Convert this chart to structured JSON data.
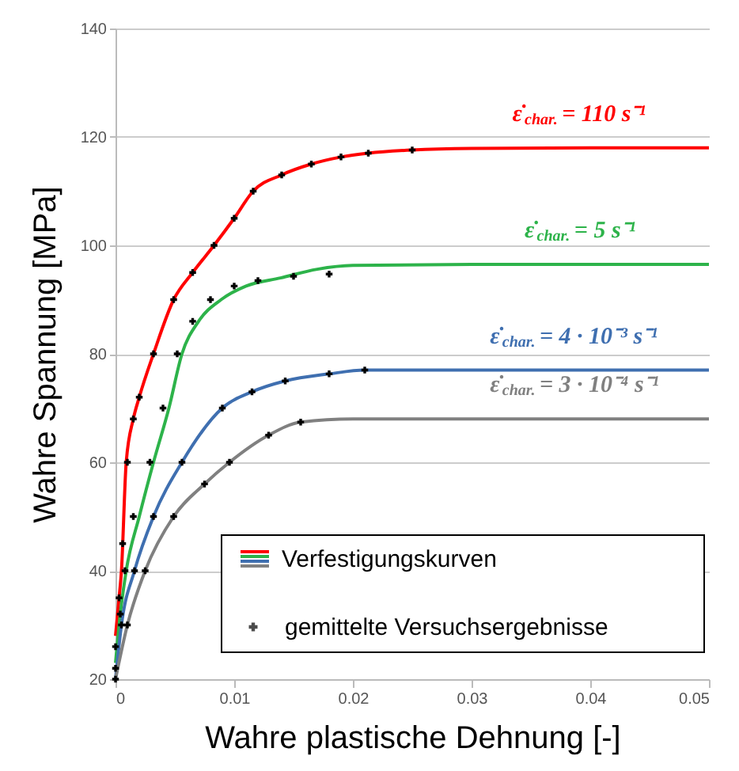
{
  "chart_data": {
    "type": "line",
    "xlabel": "Wahre plastische Dehnung [-]",
    "ylabel": "Wahre Spannung  [MPa]",
    "xlim": [
      0,
      0.05
    ],
    "xticks": [
      0,
      0.01,
      0.02,
      0.03,
      0.04,
      0.05
    ],
    "ylim": [
      20,
      140
    ],
    "yticks": [
      20,
      40,
      60,
      80,
      100,
      120,
      140
    ],
    "grid": "y",
    "legend": "bottom right",
    "annotations": [
      "ε̇$_{char.}$ = 110 s⁻¹",
      "ε̇$_{char.}$ = 5 s⁻¹",
      "ε̇$_{char.}$ = 4 · 10⁻³ s⁻¹",
      "ε̇$_{char.}$ = 3 · 10⁻⁴ s⁻¹"
    ],
    "series": [
      {
        "name": "Verfestigungskurven",
        "color": "#ff0000",
        "x": [
          0,
          0.0003,
          0.0005,
          0.0009,
          0.0015,
          0.002,
          0.0032,
          0.0049,
          0.0065,
          0.0083,
          0.01,
          0.0116,
          0.014,
          0.0165,
          0.019,
          0.0213,
          0.025,
          0.03,
          0.04,
          0.05
        ],
        "values": [
          28,
          35,
          40,
          60,
          68,
          72,
          80,
          90,
          95,
          100,
          105,
          110,
          113,
          115,
          116.3,
          117,
          117.6,
          117.9,
          118,
          118
        ]
      },
      {
        "color": "#2db34a",
        "x": [
          0,
          0.0004,
          0.0009,
          0.002,
          0.0032,
          0.0045,
          0.0056,
          0.007,
          0.0089,
          0.011,
          0.0139,
          0.017,
          0.02,
          0.03,
          0.05
        ],
        "values": [
          23,
          32,
          40,
          50,
          60,
          70,
          80,
          86,
          90,
          92.5,
          94,
          95.6,
          96.3,
          96.5,
          96.5
        ]
      },
      {
        "color": "#3f6fb0",
        "x": [
          0,
          0.0005,
          0.0016,
          0.0032,
          0.0056,
          0.009,
          0.0115,
          0.0143,
          0.018,
          0.021,
          0.025,
          0.05
        ],
        "values": [
          20,
          30,
          40,
          50,
          60,
          70,
          73,
          75,
          76.3,
          77,
          77,
          77
        ]
      },
      {
        "color": "#808080",
        "x": [
          0,
          0.001,
          0.0025,
          0.0049,
          0.0075,
          0.0096,
          0.0129,
          0.0156,
          0.02,
          0.05
        ],
        "values": [
          20,
          30,
          40,
          50,
          56,
          60,
          65,
          67.4,
          68,
          68
        ]
      },
      {
        "type": "scatter",
        "name": "gemittelte Versuchsergebnisse",
        "color": "#000000",
        "marker": "cross",
        "x": [
          0,
          0.0003,
          0.0006,
          0.001,
          0.0015,
          0.002,
          0.0032,
          0.0049,
          0.0065,
          0.0083,
          0.01,
          0.0116,
          0.014,
          0.0165,
          0.019,
          0.0213,
          0.025,
          0,
          0.0004,
          0.0008,
          0.0015,
          0.0029,
          0.004,
          0.0052,
          0.0065,
          0.008,
          0.01,
          0.012,
          0.015,
          0.018,
          0,
          0.0005,
          0.0016,
          0.0032,
          0.0056,
          0.009,
          0.0115,
          0.0143,
          0.018,
          0.021,
          0.001,
          0.0025,
          0.0049,
          0.0075,
          0.0096,
          0.0129,
          0.0156
        ],
        "values": [
          26,
          35,
          45,
          60,
          68,
          72,
          80,
          90,
          95,
          100,
          105,
          110,
          113,
          115,
          116.3,
          117,
          117.6,
          22,
          32,
          40,
          50,
          60,
          70,
          80,
          86,
          90,
          92.5,
          93.5,
          94.3,
          94.7,
          20,
          30,
          40,
          50,
          60,
          70,
          73,
          75,
          76.3,
          77,
          30,
          40,
          50,
          56,
          60,
          65,
          67.4
        ]
      }
    ]
  }
}
